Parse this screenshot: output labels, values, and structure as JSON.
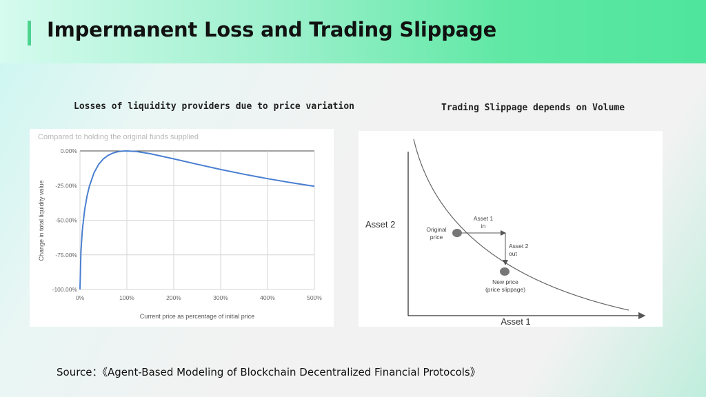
{
  "slide": {
    "title": "Impermanent Loss and Trading Slippage",
    "left_subtitle": "Losses of liquidity providers due to price variation",
    "right_subtitle": "Trading Slippage depends on Volume",
    "source": "Source：《Agent-Based Modeling of Blockchain Decentralized Financial Protocols》"
  },
  "chart_data": [
    {
      "type": "line",
      "title": "",
      "subtitle": "Compared to holding the original funds supplied",
      "xlabel": "Current price as percentage of initial price",
      "ylabel": "Change in total liquidity value",
      "xlim": [
        0,
        500
      ],
      "ylim": [
        -100,
        0
      ],
      "x_ticks": [
        0,
        100,
        200,
        300,
        400,
        500
      ],
      "x_tick_labels": [
        "0%",
        "100%",
        "200%",
        "300%",
        "400%",
        "500%"
      ],
      "y_ticks": [
        0,
        -25,
        -50,
        -75,
        -100
      ],
      "y_tick_labels": [
        "0.00%",
        "-25.00%",
        "-50.00%",
        "-75.00%",
        "-100.00%"
      ],
      "grid": true,
      "series": [
        {
          "color": "#4a7fd0",
          "x": [
            0,
            2,
            5,
            10,
            15,
            20,
            30,
            40,
            50,
            60,
            70,
            80,
            90,
            100,
            120,
            150,
            200,
            250,
            300,
            350,
            400,
            450,
            500
          ],
          "y": [
            -100,
            -72.3,
            -57.4,
            -42.5,
            -32.7,
            -25.5,
            -15.7,
            -9.6,
            -5.7,
            -3.2,
            -1.6,
            -0.6,
            -0.1,
            0,
            -0.4,
            -2.0,
            -5.7,
            -9.6,
            -13.4,
            -16.8,
            -20.0,
            -22.9,
            -25.5
          ]
        }
      ]
    },
    {
      "type": "line",
      "title": "",
      "xlabel": "Asset 1",
      "ylabel": "Asset 2",
      "grid": false,
      "annotations": {
        "original_price": "Original\nprice",
        "asset1_in": "Asset 1\nin",
        "asset2_out": "Asset 2\nout",
        "new_price": "New price\n(price slippage)"
      },
      "series": [
        {
          "color": "#666666",
          "x": [],
          "y": []
        }
      ]
    }
  ]
}
